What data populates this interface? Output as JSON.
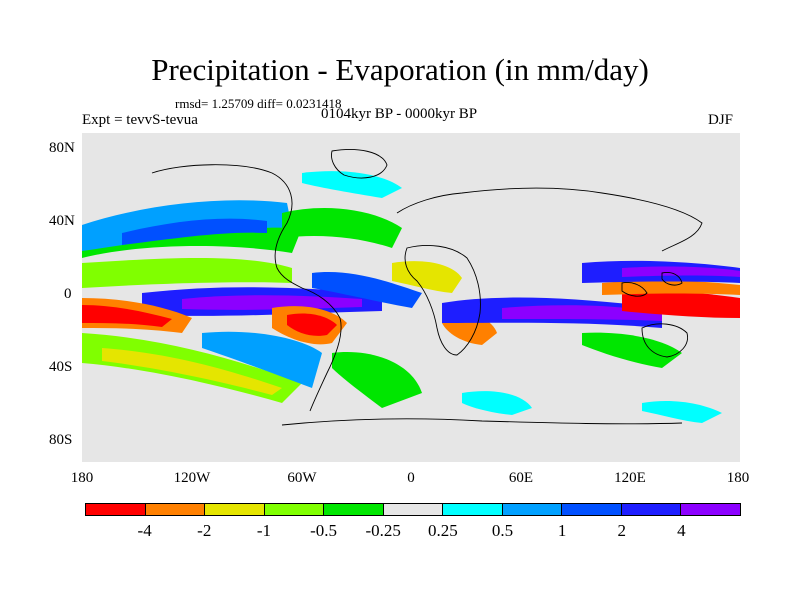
{
  "title": "Precipitation - Evaporation (in mm/day)",
  "stats": "rmsd= 1.25709 diff= 0.0231418",
  "experiment": "Expt = tevvS-tevua",
  "period": "0104kyr BP - 0000kyr BP",
  "season": "DJF",
  "map": {
    "y_ticks": [
      "80N",
      "40N",
      "0",
      "40S",
      "80S"
    ],
    "x_ticks": [
      "180",
      "120W",
      "60W",
      "0",
      "60E",
      "120E",
      "180"
    ]
  },
  "colorbar": {
    "colors": [
      "#ff0000",
      "#ff8000",
      "#e5e500",
      "#80ff00",
      "#00e600",
      "#e6e6e6",
      "#00ffff",
      "#00a0ff",
      "#0050ff",
      "#1e1eff",
      "#8c00ff"
    ],
    "labels": [
      "-4",
      "-2",
      "-1",
      "-0.5",
      "-0.25",
      "0.25",
      "0.5",
      "1",
      "2",
      "4"
    ]
  }
}
